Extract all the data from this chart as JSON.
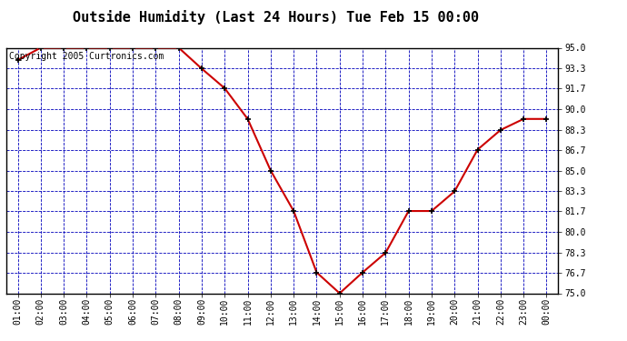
{
  "title": "Outside Humidity (Last 24 Hours) Tue Feb 15 00:00",
  "copyright": "Copyright 2005 Curtronics.com",
  "x_labels": [
    "01:00",
    "02:00",
    "03:00",
    "04:00",
    "05:00",
    "06:00",
    "07:00",
    "08:00",
    "09:00",
    "10:00",
    "11:00",
    "12:00",
    "13:00",
    "14:00",
    "15:00",
    "16:00",
    "17:00",
    "18:00",
    "19:00",
    "20:00",
    "21:00",
    "22:00",
    "23:00",
    "00:00"
  ],
  "x_values": [
    1,
    2,
    3,
    4,
    5,
    6,
    7,
    8,
    9,
    10,
    11,
    12,
    13,
    14,
    15,
    16,
    17,
    18,
    19,
    20,
    21,
    22,
    23,
    24
  ],
  "y_values": [
    94.0,
    95.0,
    95.0,
    95.0,
    95.0,
    95.0,
    95.0,
    95.0,
    93.3,
    91.7,
    89.2,
    85.0,
    81.7,
    76.7,
    75.0,
    76.7,
    78.3,
    81.7,
    81.7,
    83.3,
    86.7,
    88.3,
    89.2,
    89.2
  ],
  "y_ticks": [
    75.0,
    76.7,
    78.3,
    80.0,
    81.7,
    83.3,
    85.0,
    86.7,
    88.3,
    90.0,
    91.7,
    93.3,
    95.0
  ],
  "ylim": [
    75.0,
    95.0
  ],
  "line_color": "#cc0000",
  "marker_color": "#000000",
  "bg_color": "#ffffff",
  "plot_bg_color": "#ffffff",
  "grid_color": "#0000bb",
  "title_fontsize": 11,
  "copyright_fontsize": 7,
  "tick_fontsize": 7,
  "axis_label_color": "#000000"
}
